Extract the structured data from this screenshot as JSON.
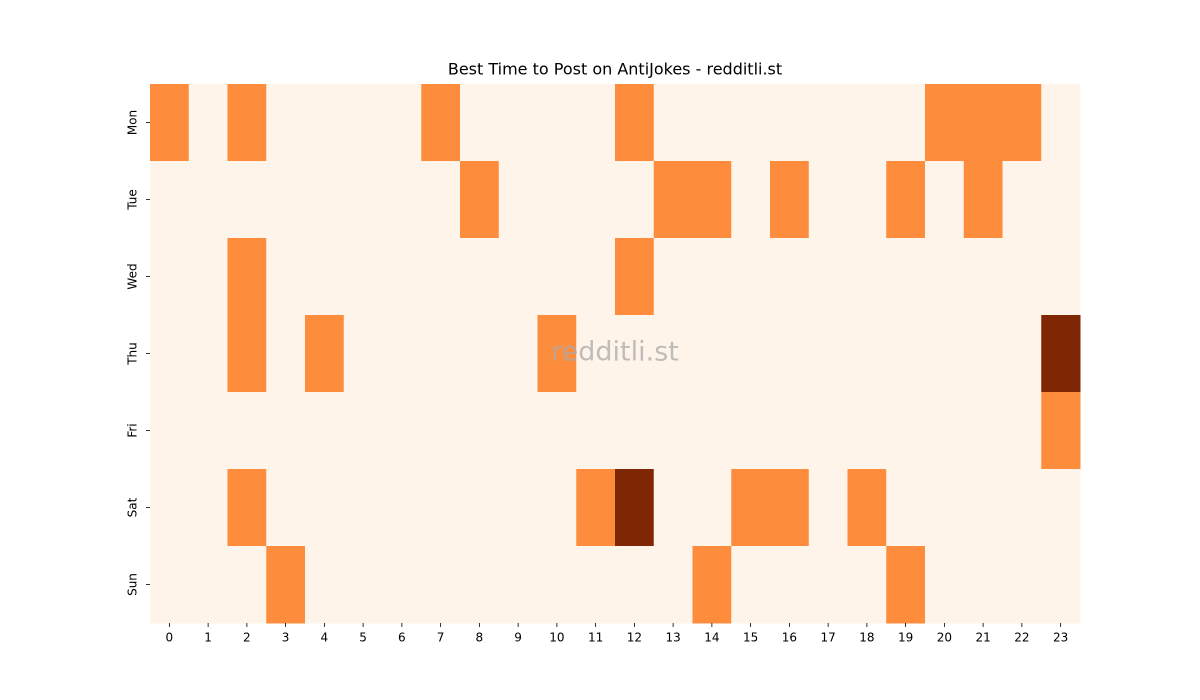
{
  "chart_data": {
    "type": "heatmap",
    "title": "Best Time to Post on AntiJokes - redditli.st",
    "watermark": "redditli.st",
    "x": [
      0,
      1,
      2,
      3,
      4,
      5,
      6,
      7,
      8,
      9,
      10,
      11,
      12,
      13,
      14,
      15,
      16,
      17,
      18,
      19,
      20,
      21,
      22,
      23
    ],
    "y": [
      "Mon",
      "Tue",
      "Wed",
      "Thu",
      "Fri",
      "Sat",
      "Sun"
    ],
    "values": [
      [
        1,
        0,
        1,
        0,
        0,
        0,
        0,
        1,
        0,
        0,
        0,
        0,
        1,
        0,
        0,
        0,
        0,
        0,
        0,
        0,
        1,
        1,
        1,
        0
      ],
      [
        0,
        0,
        0,
        0,
        0,
        0,
        0,
        0,
        1,
        0,
        0,
        0,
        0,
        1,
        1,
        0,
        1,
        0,
        0,
        1,
        0,
        1,
        0,
        0
      ],
      [
        0,
        0,
        1,
        0,
        0,
        0,
        0,
        0,
        0,
        0,
        0,
        0,
        1,
        0,
        0,
        0,
        0,
        0,
        0,
        0,
        0,
        0,
        0,
        0
      ],
      [
        0,
        0,
        1,
        0,
        1,
        0,
        0,
        0,
        0,
        0,
        1,
        0,
        0,
        0,
        0,
        0,
        0,
        0,
        0,
        0,
        0,
        0,
        0,
        2
      ],
      [
        0,
        0,
        0,
        0,
        0,
        0,
        0,
        0,
        0,
        0,
        0,
        0,
        0,
        0,
        0,
        0,
        0,
        0,
        0,
        0,
        0,
        0,
        0,
        1
      ],
      [
        0,
        0,
        1,
        0,
        0,
        0,
        0,
        0,
        0,
        0,
        0,
        1,
        2,
        0,
        0,
        1,
        1,
        0,
        1,
        0,
        0,
        0,
        0,
        0
      ],
      [
        0,
        0,
        0,
        1,
        0,
        0,
        0,
        0,
        0,
        0,
        0,
        0,
        0,
        0,
        1,
        0,
        0,
        0,
        0,
        1,
        0,
        0,
        0,
        0
      ]
    ],
    "colorscale": [
      "#fef4e9",
      "#fd8d3c",
      "#7f2704"
    ]
  }
}
